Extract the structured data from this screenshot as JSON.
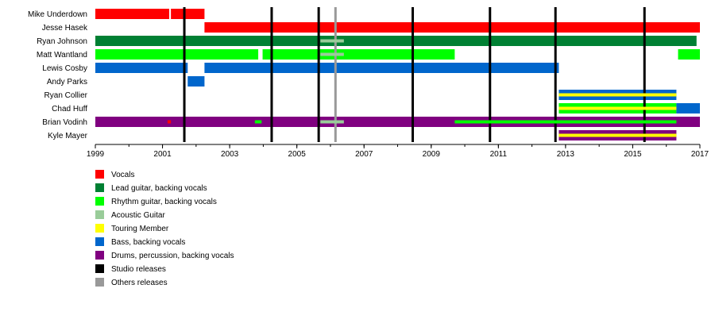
{
  "chart_data": {
    "type": "timeline",
    "x_range": [
      1999,
      2017
    ],
    "ticks": [
      "1999",
      "2001",
      "2003",
      "2005",
      "2007",
      "2009",
      "2011",
      "2013",
      "2015",
      "2017"
    ],
    "roles": [
      {
        "key": "vocals",
        "label": "Vocals",
        "color": "#ff0000"
      },
      {
        "key": "lead",
        "label": "Lead guitar, backing vocals",
        "color": "#008033"
      },
      {
        "key": "rhythm",
        "label": "Rhythm guitar, backing vocals",
        "color": "#00ff00"
      },
      {
        "key": "acoustic",
        "label": "Acoustic Guitar",
        "color": "#99cc99"
      },
      {
        "key": "touring",
        "label": "Touring Member",
        "color": "#ffff00"
      },
      {
        "key": "bass",
        "label": "Bass, backing vocals",
        "color": "#0066cc"
      },
      {
        "key": "drums",
        "label": "Drums, percussion, backing vocals",
        "color": "#800080"
      },
      {
        "key": "studio",
        "label": "Studio releases",
        "color": "#000000"
      },
      {
        "key": "other",
        "label": "Others releases",
        "color": "#999999"
      }
    ],
    "members": [
      {
        "name": "Mike Underdown",
        "bars": [
          {
            "role": "vocals",
            "start": 1999.0,
            "end": 2001.2,
            "lane": "full"
          },
          {
            "role": "vocals",
            "start": 2001.25,
            "end": 2002.25,
            "lane": "full"
          }
        ]
      },
      {
        "name": "Jesse Hasek",
        "bars": [
          {
            "role": "vocals",
            "start": 2002.25,
            "end": 2017.0,
            "lane": "full"
          }
        ]
      },
      {
        "name": "Ryan Johnson",
        "bars": [
          {
            "role": "lead",
            "start": 1999.0,
            "end": 2016.9,
            "lane": "full"
          },
          {
            "role": "acoustic",
            "start": 2005.7,
            "end": 2006.4,
            "lane": "thin"
          }
        ]
      },
      {
        "name": "Matt Wantland",
        "bars": [
          {
            "role": "rhythm",
            "start": 1999.0,
            "end": 2003.85,
            "lane": "full"
          },
          {
            "role": "rhythm",
            "start": 2003.98,
            "end": 2009.7,
            "lane": "full"
          },
          {
            "role": "rhythm",
            "start": 2016.35,
            "end": 2017.0,
            "lane": "full"
          },
          {
            "role": "acoustic",
            "start": 2005.7,
            "end": 2006.4,
            "lane": "thin"
          }
        ]
      },
      {
        "name": "Lewis Cosby",
        "bars": [
          {
            "role": "bass",
            "start": 1999.0,
            "end": 2001.75,
            "lane": "full"
          },
          {
            "role": "bass",
            "start": 2002.25,
            "end": 2012.8,
            "lane": "full"
          }
        ]
      },
      {
        "name": "Andy Parks",
        "bars": [
          {
            "role": "bass",
            "start": 2001.75,
            "end": 2002.25,
            "lane": "full"
          }
        ]
      },
      {
        "name": "Ryan Collier",
        "bars": [
          {
            "role": "bass",
            "start": 2012.8,
            "end": 2016.3,
            "lane": "outer"
          },
          {
            "role": "touring",
            "start": 2012.8,
            "end": 2016.3,
            "lane": "center"
          }
        ]
      },
      {
        "name": "Chad Huff",
        "bars": [
          {
            "role": "rhythm",
            "start": 2012.8,
            "end": 2016.3,
            "lane": "outer"
          },
          {
            "role": "touring",
            "start": 2012.8,
            "end": 2016.3,
            "lane": "center"
          },
          {
            "role": "bass",
            "start": 2016.3,
            "end": 2017.0,
            "lane": "full"
          }
        ]
      },
      {
        "name": "Brian Vodinh",
        "bars": [
          {
            "role": "drums",
            "start": 1999.0,
            "end": 2017.0,
            "lane": "full"
          },
          {
            "role": "vocals",
            "start": 2001.15,
            "end": 2001.25,
            "lane": "thin"
          },
          {
            "role": "rhythm",
            "start": 2003.75,
            "end": 2003.95,
            "lane": "thin"
          },
          {
            "role": "acoustic",
            "start": 2005.7,
            "end": 2006.4,
            "lane": "thin"
          },
          {
            "role": "rhythm",
            "start": 2009.7,
            "end": 2012.8,
            "lane": "thin"
          },
          {
            "role": "rhythm",
            "start": 2012.8,
            "end": 2016.3,
            "lane": "thin"
          }
        ]
      },
      {
        "name": "Kyle Mayer",
        "bars": [
          {
            "role": "drums",
            "start": 2012.8,
            "end": 2016.3,
            "lane": "outer"
          },
          {
            "role": "touring",
            "start": 2012.8,
            "end": 2016.3,
            "lane": "center"
          }
        ]
      }
    ],
    "studio_releases": [
      2001.65,
      2004.25,
      2005.65,
      2008.45,
      2010.75,
      2012.7,
      2015.35
    ],
    "other_releases": [
      2006.15
    ]
  }
}
